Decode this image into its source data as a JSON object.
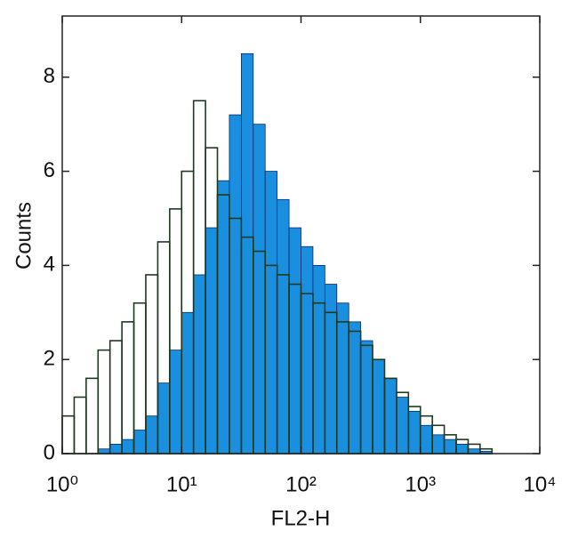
{
  "chart_data": {
    "type": "histogram",
    "xscale": "log",
    "xlabel": "FL2-H",
    "ylabel": "Counts",
    "bins": [
      1,
      1.259,
      1.585,
      1.995,
      2.512,
      3.162,
      3.981,
      5.012,
      6.31,
      7.943,
      10,
      12.59,
      15.85,
      19.95,
      25.12,
      31.62,
      39.81,
      50.12,
      63.1,
      79.43,
      100,
      125.9,
      158.5,
      199.5,
      251.2,
      316.2,
      398.1,
      501.2,
      631,
      794.3,
      1000,
      1259,
      1585,
      1995,
      2512,
      3162,
      3981,
      5012,
      6310,
      7943,
      10000
    ],
    "series": [
      {
        "color": "#1a8fe0",
        "edge": "#0a2a6a",
        "filled": true,
        "values": [
          0,
          0,
          0,
          0.1,
          0.2,
          0.3,
          0.5,
          0.8,
          1.5,
          2.2,
          3.0,
          3.8,
          4.8,
          5.8,
          7.2,
          8.5,
          7.0,
          6.0,
          5.4,
          4.8,
          4.4,
          4.0,
          3.6,
          3.2,
          2.8,
          2.4,
          2.0,
          1.6,
          1.2,
          0.9,
          0.6,
          0.4,
          0.3,
          0.2,
          0.1,
          0.05,
          0,
          0,
          0,
          0
        ]
      },
      {
        "color": "#1f3a1f",
        "filled": false,
        "values": [
          0.8,
          1.2,
          1.6,
          2.2,
          2.4,
          2.8,
          3.2,
          3.8,
          4.5,
          5.2,
          6.0,
          7.5,
          6.5,
          5.5,
          5.0,
          4.6,
          4.3,
          4.0,
          3.8,
          3.6,
          3.4,
          3.2,
          3.0,
          2.8,
          2.6,
          2.3,
          2.0,
          1.6,
          1.3,
          1.0,
          0.8,
          0.6,
          0.4,
          0.3,
          0.2,
          0.1,
          0,
          0,
          0,
          0
        ]
      }
    ],
    "xlim": [
      1,
      10000
    ],
    "xticks": [
      {
        "value": 1,
        "label": "10⁰"
      },
      {
        "value": 10,
        "label": "10¹"
      },
      {
        "value": 100,
        "label": "10²"
      },
      {
        "value": 1000,
        "label": "10³"
      },
      {
        "value": 10000,
        "label": "10⁴"
      }
    ],
    "ylim": [
      0,
      9.3
    ],
    "yticks": [
      0,
      2,
      4,
      6,
      8
    ]
  }
}
